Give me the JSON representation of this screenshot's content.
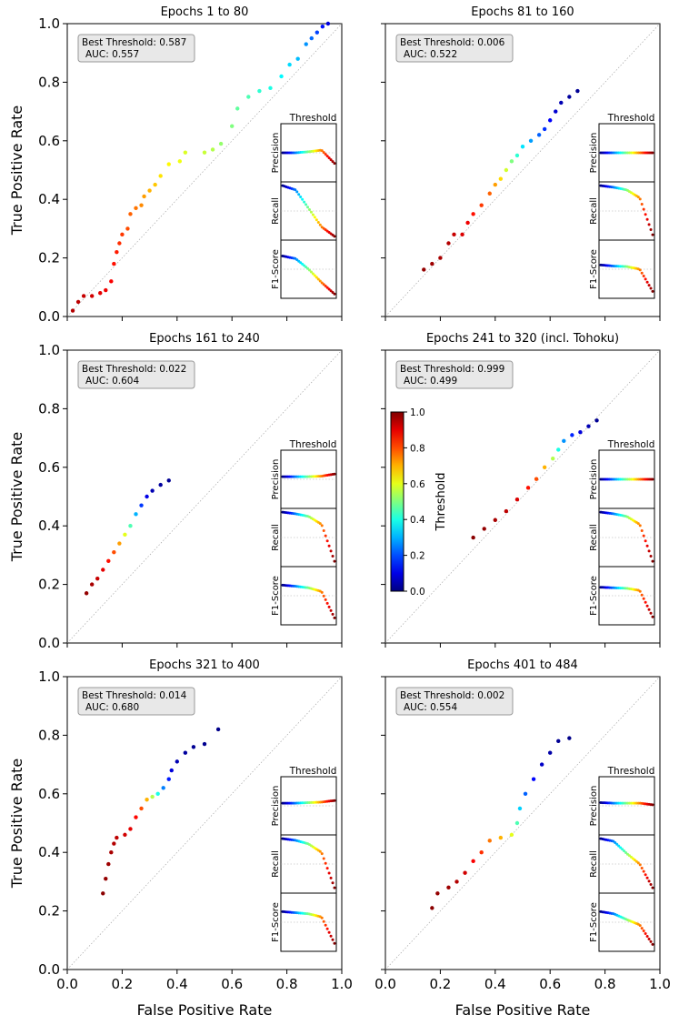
{
  "figure": {
    "xlabel": "False Positive Rate",
    "ylabel": "True Positive Rate",
    "xticks": [
      "0.0",
      "0.2",
      "0.4",
      "0.6",
      "0.8",
      "1.0"
    ],
    "yticks": [
      "0.0",
      "0.2",
      "0.4",
      "0.6",
      "0.8",
      "1.0"
    ],
    "inset_labels": {
      "title": "Threshold",
      "precision": "Precision",
      "recall": "Recall",
      "f1": "F1-Score"
    },
    "colorbar": {
      "label": "Threshold",
      "ticks": [
        "0.0",
        "0.2",
        "0.4",
        "0.6",
        "0.8",
        "1.0"
      ],
      "colormap": "jet",
      "range": [
        0,
        1
      ]
    }
  },
  "chart_data": [
    {
      "type": "scatter",
      "title": "Epochs 1 to 80",
      "best_threshold_label": "Best Threshold: 0.587",
      "auc_label": "AUC: 0.557",
      "xlim": [
        0,
        1
      ],
      "ylim": [
        0,
        1
      ],
      "points": [
        [
          0.02,
          0.02,
          0.95
        ],
        [
          0.04,
          0.05,
          0.94
        ],
        [
          0.06,
          0.07,
          0.93
        ],
        [
          0.09,
          0.07,
          0.92
        ],
        [
          0.12,
          0.08,
          0.9
        ],
        [
          0.14,
          0.09,
          0.89
        ],
        [
          0.16,
          0.12,
          0.88
        ],
        [
          0.17,
          0.18,
          0.86
        ],
        [
          0.18,
          0.22,
          0.85
        ],
        [
          0.19,
          0.25,
          0.83
        ],
        [
          0.2,
          0.28,
          0.82
        ],
        [
          0.22,
          0.3,
          0.8
        ],
        [
          0.23,
          0.35,
          0.78
        ],
        [
          0.25,
          0.37,
          0.76
        ],
        [
          0.27,
          0.38,
          0.74
        ],
        [
          0.28,
          0.41,
          0.72
        ],
        [
          0.3,
          0.43,
          0.7
        ],
        [
          0.32,
          0.45,
          0.68
        ],
        [
          0.34,
          0.48,
          0.65
        ],
        [
          0.37,
          0.52,
          0.63
        ],
        [
          0.41,
          0.53,
          0.61
        ],
        [
          0.43,
          0.56,
          0.59
        ],
        [
          0.5,
          0.56,
          0.57
        ],
        [
          0.53,
          0.57,
          0.55
        ],
        [
          0.56,
          0.59,
          0.52
        ],
        [
          0.6,
          0.65,
          0.5
        ],
        [
          0.62,
          0.71,
          0.47
        ],
        [
          0.66,
          0.75,
          0.45
        ],
        [
          0.7,
          0.77,
          0.42
        ],
        [
          0.74,
          0.78,
          0.4
        ],
        [
          0.78,
          0.82,
          0.37
        ],
        [
          0.81,
          0.86,
          0.34
        ],
        [
          0.84,
          0.88,
          0.31
        ],
        [
          0.87,
          0.93,
          0.27
        ],
        [
          0.89,
          0.95,
          0.23
        ],
        [
          0.91,
          0.97,
          0.19
        ],
        [
          0.93,
          0.99,
          0.14
        ],
        [
          0.95,
          1.0,
          0.09
        ]
      ],
      "inset": {
        "precision": [
          0.5,
          0.5,
          0.52,
          0.55,
          0.3
        ],
        "recall": [
          0.98,
          0.9,
          0.55,
          0.2,
          0.02
        ],
        "f1": [
          0.75,
          0.7,
          0.5,
          0.25,
          0.03
        ]
      }
    },
    {
      "type": "scatter",
      "title": "Epochs 81 to 160",
      "best_threshold_label": "Best Threshold: 0.006",
      "auc_label": "AUC: 0.522",
      "xlim": [
        0,
        1
      ],
      "ylim": [
        0,
        1
      ],
      "points": [
        [
          0.14,
          0.16,
          0.98
        ],
        [
          0.17,
          0.18,
          0.97
        ],
        [
          0.2,
          0.2,
          0.96
        ],
        [
          0.23,
          0.25,
          0.95
        ],
        [
          0.25,
          0.28,
          0.93
        ],
        [
          0.28,
          0.28,
          0.91
        ],
        [
          0.3,
          0.32,
          0.89
        ],
        [
          0.32,
          0.35,
          0.86
        ],
        [
          0.35,
          0.38,
          0.82
        ],
        [
          0.38,
          0.42,
          0.78
        ],
        [
          0.4,
          0.45,
          0.72
        ],
        [
          0.42,
          0.47,
          0.66
        ],
        [
          0.44,
          0.5,
          0.58
        ],
        [
          0.46,
          0.53,
          0.5
        ],
        [
          0.48,
          0.55,
          0.42
        ],
        [
          0.5,
          0.58,
          0.35
        ],
        [
          0.53,
          0.6,
          0.28
        ],
        [
          0.56,
          0.62,
          0.22
        ],
        [
          0.58,
          0.64,
          0.17
        ],
        [
          0.6,
          0.67,
          0.12
        ],
        [
          0.62,
          0.7,
          0.08
        ],
        [
          0.64,
          0.73,
          0.05
        ],
        [
          0.67,
          0.75,
          0.03
        ],
        [
          0.7,
          0.77,
          0.02
        ]
      ],
      "inset": {
        "precision": [
          0.5,
          0.5,
          0.5,
          0.5,
          0.5
        ],
        "recall": [
          0.98,
          0.95,
          0.9,
          0.75,
          0.05
        ],
        "f1": [
          0.58,
          0.56,
          0.55,
          0.5,
          0.08
        ]
      }
    },
    {
      "type": "scatter",
      "title": "Epochs 161 to 240",
      "best_threshold_label": "Best Threshold: 0.022",
      "auc_label": "AUC: 0.604",
      "xlim": [
        0,
        1
      ],
      "ylim": [
        0,
        1
      ],
      "points": [
        [
          0.07,
          0.17,
          0.98
        ],
        [
          0.09,
          0.2,
          0.96
        ],
        [
          0.11,
          0.22,
          0.93
        ],
        [
          0.13,
          0.25,
          0.9
        ],
        [
          0.15,
          0.28,
          0.86
        ],
        [
          0.17,
          0.31,
          0.8
        ],
        [
          0.19,
          0.34,
          0.72
        ],
        [
          0.21,
          0.37,
          0.6
        ],
        [
          0.23,
          0.4,
          0.45
        ],
        [
          0.25,
          0.44,
          0.3
        ],
        [
          0.27,
          0.47,
          0.18
        ],
        [
          0.29,
          0.5,
          0.1
        ],
        [
          0.31,
          0.52,
          0.05
        ],
        [
          0.34,
          0.54,
          0.03
        ],
        [
          0.37,
          0.555,
          0.02
        ]
      ],
      "inset": {
        "precision": [
          0.55,
          0.55,
          0.55,
          0.56,
          0.6
        ],
        "recall": [
          0.98,
          0.95,
          0.9,
          0.75,
          0.05
        ],
        "f1": [
          0.7,
          0.68,
          0.65,
          0.58,
          0.08
        ]
      }
    },
    {
      "type": "scatter",
      "title": "Epochs 241 to 320 (incl. Tohoku)",
      "best_threshold_label": "Best Threshold: 0.999",
      "auc_label": "AUC: 0.499",
      "xlim": [
        0,
        1
      ],
      "ylim": [
        0,
        1
      ],
      "points": [
        [
          0.32,
          0.36,
          0.99
        ],
        [
          0.36,
          0.39,
          0.98
        ],
        [
          0.4,
          0.42,
          0.96
        ],
        [
          0.44,
          0.45,
          0.94
        ],
        [
          0.48,
          0.49,
          0.91
        ],
        [
          0.52,
          0.53,
          0.86
        ],
        [
          0.55,
          0.56,
          0.8
        ],
        [
          0.58,
          0.6,
          0.7
        ],
        [
          0.61,
          0.63,
          0.55
        ],
        [
          0.63,
          0.66,
          0.4
        ],
        [
          0.65,
          0.69,
          0.27
        ],
        [
          0.68,
          0.71,
          0.16
        ],
        [
          0.71,
          0.72,
          0.09
        ],
        [
          0.74,
          0.74,
          0.05
        ],
        [
          0.77,
          0.76,
          0.02
        ]
      ],
      "inset": {
        "precision": [
          0.5,
          0.5,
          0.5,
          0.5,
          0.5
        ],
        "recall": [
          0.98,
          0.95,
          0.9,
          0.75,
          0.05
        ],
        "f1": [
          0.66,
          0.65,
          0.64,
          0.6,
          0.1
        ]
      }
    },
    {
      "type": "scatter",
      "title": "Epochs 321 to 400",
      "best_threshold_label": "Best Threshold: 0.014",
      "auc_label": "AUC: 0.680",
      "xlim": [
        0,
        1
      ],
      "ylim": [
        0,
        1
      ],
      "points": [
        [
          0.13,
          0.26,
          0.99
        ],
        [
          0.14,
          0.31,
          0.98
        ],
        [
          0.15,
          0.36,
          0.97
        ],
        [
          0.16,
          0.4,
          0.96
        ],
        [
          0.17,
          0.43,
          0.95
        ],
        [
          0.18,
          0.45,
          0.94
        ],
        [
          0.21,
          0.46,
          0.92
        ],
        [
          0.23,
          0.48,
          0.9
        ],
        [
          0.25,
          0.52,
          0.87
        ],
        [
          0.27,
          0.55,
          0.8
        ],
        [
          0.29,
          0.58,
          0.7
        ],
        [
          0.31,
          0.59,
          0.55
        ],
        [
          0.33,
          0.6,
          0.4
        ],
        [
          0.35,
          0.62,
          0.25
        ],
        [
          0.37,
          0.65,
          0.15
        ],
        [
          0.38,
          0.68,
          0.09
        ],
        [
          0.4,
          0.71,
          0.05
        ],
        [
          0.43,
          0.74,
          0.03
        ],
        [
          0.46,
          0.76,
          0.02
        ],
        [
          0.5,
          0.77,
          0.015
        ],
        [
          0.55,
          0.82,
          0.01
        ]
      ],
      "inset": {
        "precision": [
          0.55,
          0.55,
          0.56,
          0.57,
          0.6
        ],
        "recall": [
          0.98,
          0.95,
          0.88,
          0.72,
          0.05
        ],
        "f1": [
          0.7,
          0.68,
          0.66,
          0.6,
          0.1
        ]
      }
    },
    {
      "type": "scatter",
      "title": "Epochs 401 to 484",
      "best_threshold_label": "Best Threshold: 0.002",
      "auc_label": "AUC: 0.554",
      "xlim": [
        0,
        1
      ],
      "ylim": [
        0,
        1
      ],
      "points": [
        [
          0.17,
          0.21,
          0.99
        ],
        [
          0.19,
          0.26,
          0.98
        ],
        [
          0.23,
          0.28,
          0.97
        ],
        [
          0.26,
          0.3,
          0.95
        ],
        [
          0.29,
          0.33,
          0.92
        ],
        [
          0.32,
          0.37,
          0.88
        ],
        [
          0.35,
          0.4,
          0.83
        ],
        [
          0.38,
          0.44,
          0.76
        ],
        [
          0.42,
          0.45,
          0.7
        ],
        [
          0.46,
          0.46,
          0.6
        ],
        [
          0.48,
          0.5,
          0.45
        ],
        [
          0.49,
          0.55,
          0.33
        ],
        [
          0.51,
          0.6,
          0.22
        ],
        [
          0.54,
          0.65,
          0.13
        ],
        [
          0.57,
          0.7,
          0.07
        ],
        [
          0.6,
          0.74,
          0.04
        ],
        [
          0.63,
          0.78,
          0.02
        ],
        [
          0.67,
          0.79,
          0.01
        ]
      ],
      "inset": {
        "precision": [
          0.56,
          0.55,
          0.55,
          0.55,
          0.52
        ],
        "recall": [
          0.98,
          0.93,
          0.7,
          0.5,
          0.05
        ],
        "f1": [
          0.7,
          0.66,
          0.55,
          0.45,
          0.08
        ]
      }
    }
  ]
}
